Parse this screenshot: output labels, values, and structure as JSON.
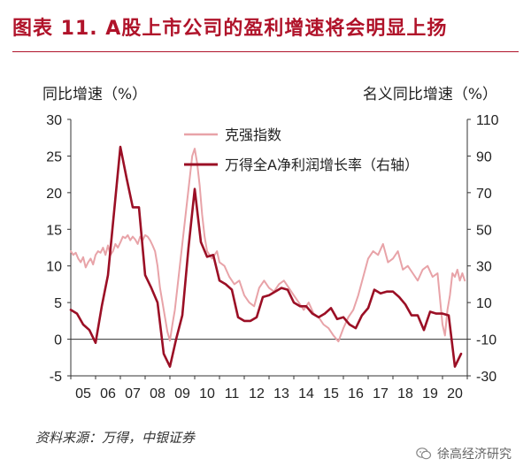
{
  "title": "图表 11. A股上市公司的盈利增速将会明显上扬",
  "source": "资料来源：万得，中银证券",
  "watermark": "徐高经济研究",
  "chart_data": {
    "type": "line",
    "left_axis": {
      "label": "同比增速（%）",
      "ticks": [
        30,
        25,
        20,
        15,
        10,
        5,
        0,
        -5
      ],
      "range": [
        -5,
        30
      ]
    },
    "right_axis": {
      "label": "名义同比增速（%）",
      "ticks": [
        110,
        90,
        70,
        50,
        30,
        10,
        -10,
        -30
      ],
      "range": [
        -30,
        110
      ]
    },
    "x_ticks": [
      "05",
      "06",
      "07",
      "08",
      "09",
      "10",
      "11",
      "12",
      "13",
      "14",
      "15",
      "16",
      "17",
      "18",
      "19",
      "20"
    ],
    "x_range": [
      2005.0,
      2021.0
    ],
    "legend": [
      {
        "name": "克强指数",
        "color": "#e8a3a8"
      },
      {
        "name": "万得全A净利润增长率（右轴）",
        "color": "#9b0f25"
      }
    ],
    "series": [
      {
        "name": "克强指数",
        "axis": "left",
        "color": "#e8a3a8",
        "x": [
          2005.0,
          2005.1,
          2005.2,
          2005.3,
          2005.4,
          2005.5,
          2005.6,
          2005.7,
          2005.8,
          2005.9,
          2006.0,
          2006.1,
          2006.2,
          2006.3,
          2006.4,
          2006.5,
          2006.6,
          2006.7,
          2006.8,
          2006.9,
          2007.0,
          2007.1,
          2007.2,
          2007.3,
          2007.4,
          2007.5,
          2007.6,
          2007.7,
          2007.8,
          2007.9,
          2008.0,
          2008.1,
          2008.2,
          2008.3,
          2008.4,
          2008.5,
          2008.6,
          2008.7,
          2008.8,
          2008.9,
          2009.0,
          2009.1,
          2009.2,
          2009.3,
          2009.4,
          2009.5,
          2009.6,
          2009.7,
          2009.8,
          2009.9,
          2010.0,
          2010.1,
          2010.2,
          2010.3,
          2010.4,
          2010.5,
          2010.6,
          2010.7,
          2010.8,
          2010.9,
          2011.0,
          2011.2,
          2011.4,
          2011.6,
          2011.8,
          2012.0,
          2012.2,
          2012.4,
          2012.6,
          2012.8,
          2013.0,
          2013.2,
          2013.4,
          2013.6,
          2013.8,
          2014.0,
          2014.2,
          2014.4,
          2014.6,
          2014.8,
          2015.0,
          2015.2,
          2015.4,
          2015.6,
          2015.8,
          2016.0,
          2016.2,
          2016.4,
          2016.6,
          2016.8,
          2017.0,
          2017.2,
          2017.4,
          2017.6,
          2017.8,
          2018.0,
          2018.2,
          2018.4,
          2018.6,
          2018.8,
          2019.0,
          2019.2,
          2019.4,
          2019.6,
          2019.8,
          2020.0,
          2020.1,
          2020.2,
          2020.3,
          2020.4,
          2020.5,
          2020.6,
          2020.7,
          2020.8,
          2020.9
        ],
        "values": [
          12.0,
          11.5,
          11.8,
          11.0,
          10.5,
          11.2,
          9.8,
          10.5,
          11.0,
          10.2,
          11.5,
          12.0,
          11.8,
          12.5,
          11.5,
          12.8,
          11.5,
          12.0,
          13.0,
          12.5,
          13.2,
          14.0,
          13.8,
          14.2,
          13.5,
          14.0,
          13.6,
          13.0,
          14.0,
          13.5,
          14.2,
          14.0,
          13.5,
          12.8,
          12.0,
          10.0,
          7.0,
          5.0,
          3.0,
          1.0,
          -0.2,
          2.0,
          4.0,
          7.0,
          10.0,
          13.0,
          16.0,
          19.0,
          22.0,
          25.0,
          26.0,
          24.0,
          21.0,
          17.0,
          14.0,
          12.0,
          11.5,
          11.0,
          11.5,
          12.0,
          10.5,
          10.0,
          8.5,
          7.5,
          8.0,
          6.0,
          5.0,
          4.5,
          7.0,
          8.0,
          7.0,
          6.5,
          7.5,
          8.0,
          7.0,
          6.0,
          5.0,
          4.0,
          5.0,
          3.5,
          3.0,
          2.0,
          1.5,
          0.5,
          -0.3,
          1.5,
          3.0,
          4.0,
          6.0,
          8.5,
          11.0,
          12.0,
          11.5,
          13.0,
          10.5,
          11.0,
          12.0,
          9.5,
          10.0,
          9.0,
          8.0,
          9.5,
          10.0,
          8.5,
          9.0,
          2.0,
          0.5,
          4.0,
          6.0,
          9.0,
          8.5,
          9.5,
          8.0,
          9.0,
          8.0
        ]
      },
      {
        "name": "万得全A净利润增长率（右轴）",
        "axis": "right",
        "color": "#9b0f25",
        "x": [
          2005.0,
          2005.25,
          2005.5,
          2005.75,
          2006.0,
          2006.25,
          2006.5,
          2006.75,
          2007.0,
          2007.25,
          2007.5,
          2007.75,
          2008.0,
          2008.25,
          2008.5,
          2008.75,
          2009.0,
          2009.25,
          2009.5,
          2009.75,
          2010.0,
          2010.25,
          2010.5,
          2010.75,
          2011.0,
          2011.25,
          2011.5,
          2011.75,
          2012.0,
          2012.25,
          2012.5,
          2012.75,
          2013.0,
          2013.25,
          2013.5,
          2013.75,
          2014.0,
          2014.25,
          2014.5,
          2014.75,
          2015.0,
          2015.25,
          2015.5,
          2015.75,
          2016.0,
          2016.25,
          2016.5,
          2016.75,
          2017.0,
          2017.25,
          2017.5,
          2017.75,
          2018.0,
          2018.25,
          2018.5,
          2018.75,
          2019.0,
          2019.25,
          2019.5,
          2019.75,
          2020.0,
          2020.25,
          2020.5,
          2020.75
        ],
        "values": [
          6,
          4,
          -2,
          -5,
          -12,
          8,
          25,
          60,
          95,
          78,
          62,
          62,
          25,
          18,
          10,
          -18,
          -25,
          -10,
          3,
          40,
          72,
          43,
          35,
          36,
          22,
          20,
          17,
          2,
          0,
          0,
          2,
          13,
          14,
          16,
          18,
          17,
          10,
          8,
          8,
          4,
          2,
          4,
          7,
          1,
          2,
          -2,
          -4,
          3,
          7,
          17,
          15,
          16,
          16,
          13,
          9,
          3,
          3,
          -5,
          5,
          4,
          4,
          3,
          -25,
          -18
        ]
      }
    ]
  }
}
